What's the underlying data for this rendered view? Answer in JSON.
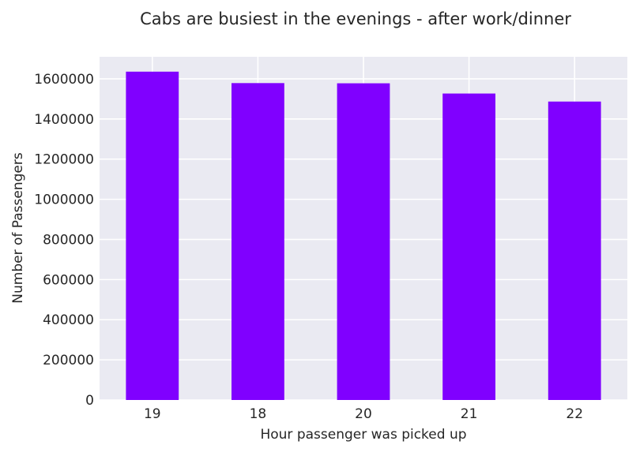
{
  "chart_data": {
    "type": "bar",
    "title": "Cabs are busiest in the evenings - after work/dinner",
    "xlabel": "Hour passenger was picked up",
    "ylabel": "Number of Passengers",
    "categories": [
      "19",
      "18",
      "20",
      "21",
      "22"
    ],
    "values": [
      1636000,
      1579000,
      1578000,
      1527000,
      1487000
    ],
    "ylim": [
      0,
      1710000
    ],
    "yticks": [
      0,
      200000,
      400000,
      600000,
      800000,
      1000000,
      1200000,
      1400000,
      1600000
    ],
    "ytick_labels": [
      "0",
      "200000",
      "400000",
      "600000",
      "800000",
      "1000000",
      "1200000",
      "1400000",
      "1600000"
    ],
    "grid": true,
    "legend": false,
    "bar_color": "#8000ff",
    "background_color": "#eaeaf2",
    "grid_color": "#ffffff"
  }
}
